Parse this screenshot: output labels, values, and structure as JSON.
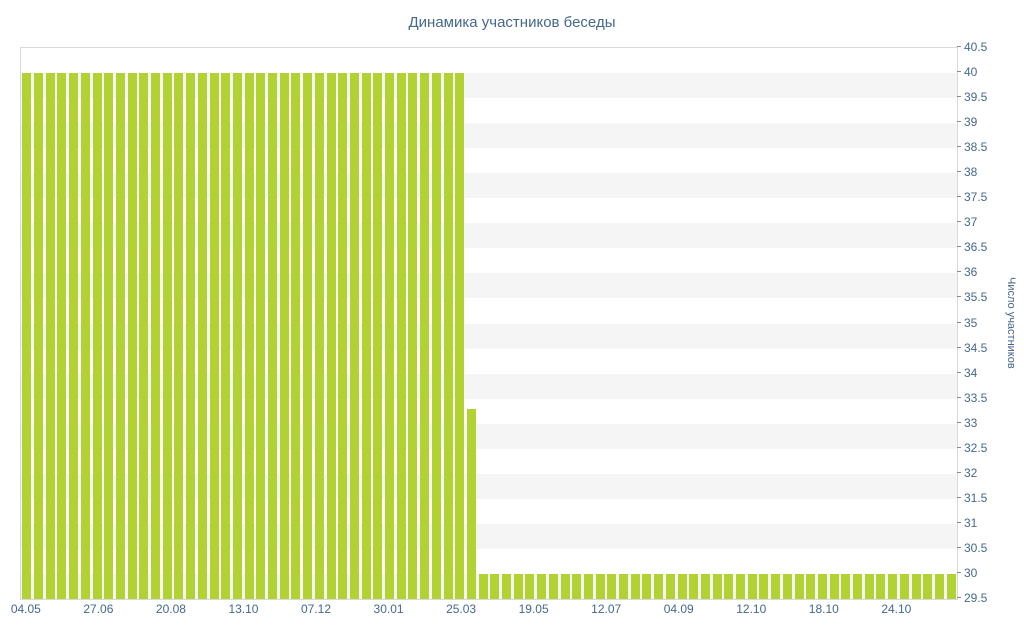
{
  "chart_data": {
    "type": "bar",
    "title": "Динамика участников беседы",
    "ylabel": "Число участников",
    "xlabel": "",
    "ylim": [
      29.5,
      40.5
    ],
    "y_tick_step": 0.5,
    "grid": "alternating-horizontal-stripes",
    "legend": "none",
    "y_axis_position": "right",
    "x_labels": [
      "04.05",
      "27.06",
      "20.08",
      "13.10",
      "07.12",
      "30.01",
      "25.03",
      "19.05",
      "12.07",
      "04.09",
      "12.10",
      "18.10",
      "24.10"
    ],
    "y_tick_labels": [
      "40.5",
      "40",
      "39.5",
      "39",
      "38.5",
      "38",
      "37.5",
      "37",
      "36.5",
      "36",
      "35.5",
      "35",
      "34.5",
      "34",
      "33.5",
      "33",
      "32.5",
      "32",
      "31.5",
      "31",
      "30.5",
      "30",
      "29.5"
    ],
    "values": [
      40,
      40,
      40,
      40,
      40,
      40,
      40,
      40,
      40,
      40,
      40,
      40,
      40,
      40,
      40,
      40,
      40,
      40,
      40,
      40,
      40,
      40,
      40,
      40,
      40,
      40,
      40,
      40,
      40,
      40,
      40,
      40,
      40,
      40,
      40,
      40,
      40,
      40,
      33.3,
      30,
      30,
      30,
      30,
      30,
      30,
      30,
      30,
      30,
      30,
      30,
      30,
      30,
      30,
      30,
      30,
      30,
      30,
      30,
      30,
      30,
      30,
      30,
      30,
      30,
      30,
      30,
      30,
      30,
      30,
      30,
      30,
      30,
      30,
      30,
      30,
      30,
      30,
      30,
      30,
      30
    ],
    "colors": {
      "bar": "#b2d234",
      "axis_text": "#45688e",
      "plot_border": "#d9d9d9",
      "stripe": "#f5f5f5",
      "tick": "#8a8a8a",
      "background": "#ffffff"
    }
  }
}
